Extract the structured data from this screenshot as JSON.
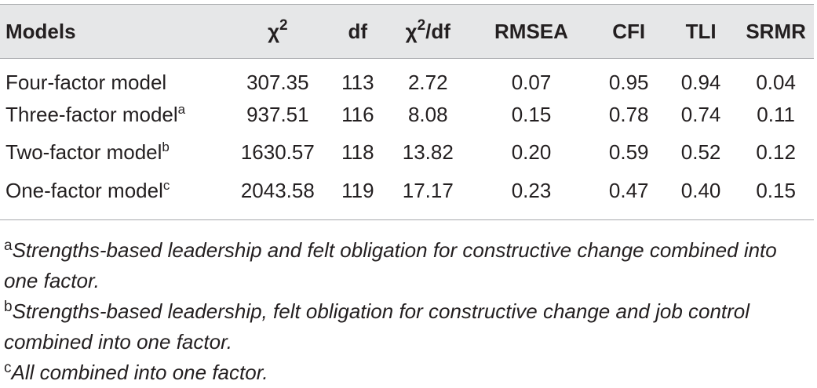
{
  "table": {
    "headers": {
      "models": "Models",
      "chi": "χ",
      "chi_sup": "2",
      "df": "df",
      "chidf_pre": "χ",
      "chidf_sup": "2",
      "chidf_post": "/df",
      "rmsea": "RMSEA",
      "cfi": "CFI",
      "tli": "TLI",
      "srmr": "SRMR"
    },
    "rows": [
      {
        "model": "Four-factor model",
        "sup": "",
        "chi2": "307.35",
        "df": "113",
        "chi2df": "2.72",
        "rmsea": "0.07",
        "cfi": "0.95",
        "tli": "0.94",
        "srmr": "0.04"
      },
      {
        "model": "Three-factor model",
        "sup": "a",
        "chi2": "937.51",
        "df": "116",
        "chi2df": "8.08",
        "rmsea": "0.15",
        "cfi": "0.78",
        "tli": "0.74",
        "srmr": "0.11"
      },
      {
        "model": "Two-factor model",
        "sup": "b",
        "chi2": "1630.57",
        "df": "118",
        "chi2df": "13.82",
        "rmsea": "0.20",
        "cfi": "0.59",
        "tli": "0.52",
        "srmr": "0.12"
      },
      {
        "model": "One-factor model",
        "sup": "c",
        "chi2": "2043.58",
        "df": "119",
        "chi2df": "17.17",
        "rmsea": "0.23",
        "cfi": "0.47",
        "tli": "0.40",
        "srmr": "0.15"
      }
    ]
  },
  "notes": [
    {
      "marker": "a",
      "text": "Strengths-based leadership and felt obligation for constructive change combined into one factor."
    },
    {
      "marker": "b",
      "text": "Strengths-based leadership, felt obligation for constructive change and job control combined into one factor."
    },
    {
      "marker": "c",
      "text": "All combined into one factor."
    }
  ]
}
